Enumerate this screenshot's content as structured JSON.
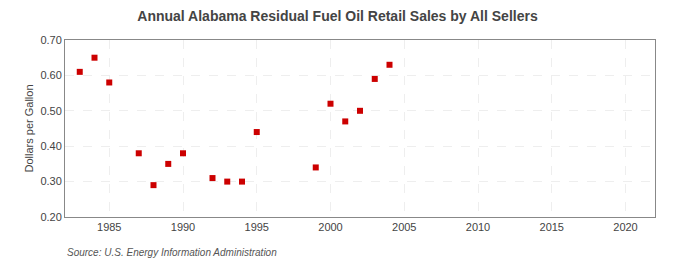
{
  "chart_data": {
    "type": "scatter",
    "title": "Annual Alabama Residual Fuel Oil Retail Sales by All Sellers",
    "ylabel": "Dollars per Gallon",
    "annotations": [
      {
        "text": "Source: U.S. Energy Information Administration"
      }
    ],
    "x": [
      1983,
      1984,
      1985,
      1987,
      1988,
      1989,
      1990,
      1992,
      1993,
      1994,
      1995,
      1999,
      2000,
      2001,
      2002,
      2003,
      2004
    ],
    "values": [
      0.61,
      0.65,
      0.58,
      0.38,
      0.29,
      0.35,
      0.38,
      0.31,
      0.3,
      0.3,
      0.44,
      0.34,
      0.52,
      0.47,
      0.5,
      0.59,
      0.63
    ],
    "color": "#cc0000",
    "marker": "square",
    "xlim": [
      1982,
      2022
    ],
    "xticks": [
      1985,
      1990,
      1995,
      2000,
      2005,
      2010,
      2015,
      2020
    ],
    "ylim": [
      0.2,
      0.7
    ],
    "yticks": [
      {
        "value": 0.2,
        "label": "0.20"
      },
      {
        "value": 0.3,
        "label": "0.30"
      },
      {
        "value": 0.4,
        "label": "0.40"
      },
      {
        "value": 0.5,
        "label": "0.50"
      },
      {
        "value": 0.6,
        "label": "0.60"
      },
      {
        "value": 0.7,
        "label": "0.70"
      }
    ],
    "grid": true
  }
}
